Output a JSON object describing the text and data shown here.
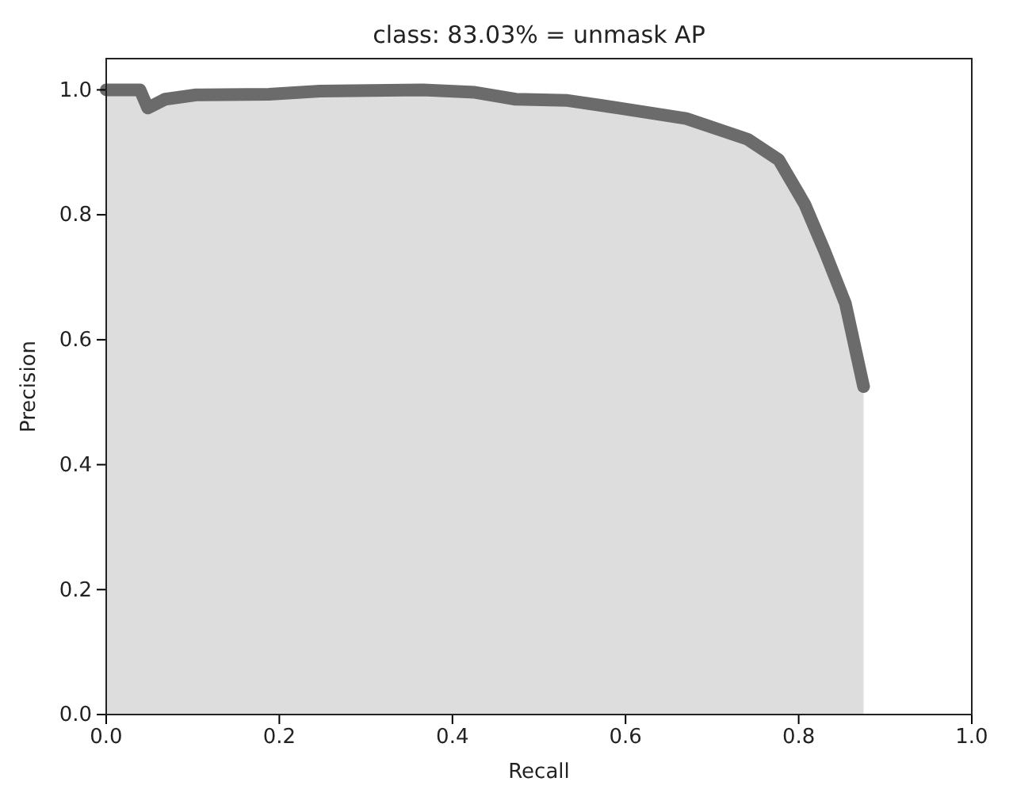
{
  "chart_data": {
    "type": "area",
    "title": "class: 83.03% = unmask AP",
    "xlabel": "Recall",
    "ylabel": "Precision",
    "xlim": [
      0,
      1
    ],
    "ylim": [
      0,
      1.05
    ],
    "xticks": [
      {
        "value": 0,
        "label": "0.0"
      },
      {
        "value": 0.2,
        "label": "0.2"
      },
      {
        "value": 0.4,
        "label": "0.4"
      },
      {
        "value": 0.6,
        "label": "0.6"
      },
      {
        "value": 0.8,
        "label": "0.8"
      },
      {
        "value": 1,
        "label": "1.0"
      }
    ],
    "yticks": [
      {
        "value": 0,
        "label": "0.0"
      },
      {
        "value": 0.2,
        "label": "0.2"
      },
      {
        "value": 0.4,
        "label": "0.4"
      },
      {
        "value": 0.6,
        "label": "0.6"
      },
      {
        "value": 0.8,
        "label": "0.8"
      },
      {
        "value": 1,
        "label": "1.0"
      }
    ],
    "grid": false,
    "series": [
      {
        "color": "#6b6b6b",
        "x": [
          0,
          0.039,
          0.048,
          0.068,
          0.104,
          0.188,
          0.247,
          0.366,
          0.426,
          0.473,
          0.533,
          0.592,
          0.67,
          0.741,
          0.777,
          0.807,
          0.83,
          0.854,
          0.875
        ],
        "values": [
          1.0,
          1.0,
          0.971,
          0.985,
          0.992,
          0.993,
          0.998,
          1.0,
          0.996,
          0.985,
          0.983,
          0.971,
          0.954,
          0.921,
          0.888,
          0.817,
          0.742,
          0.658,
          0.525
        ]
      }
    ]
  }
}
